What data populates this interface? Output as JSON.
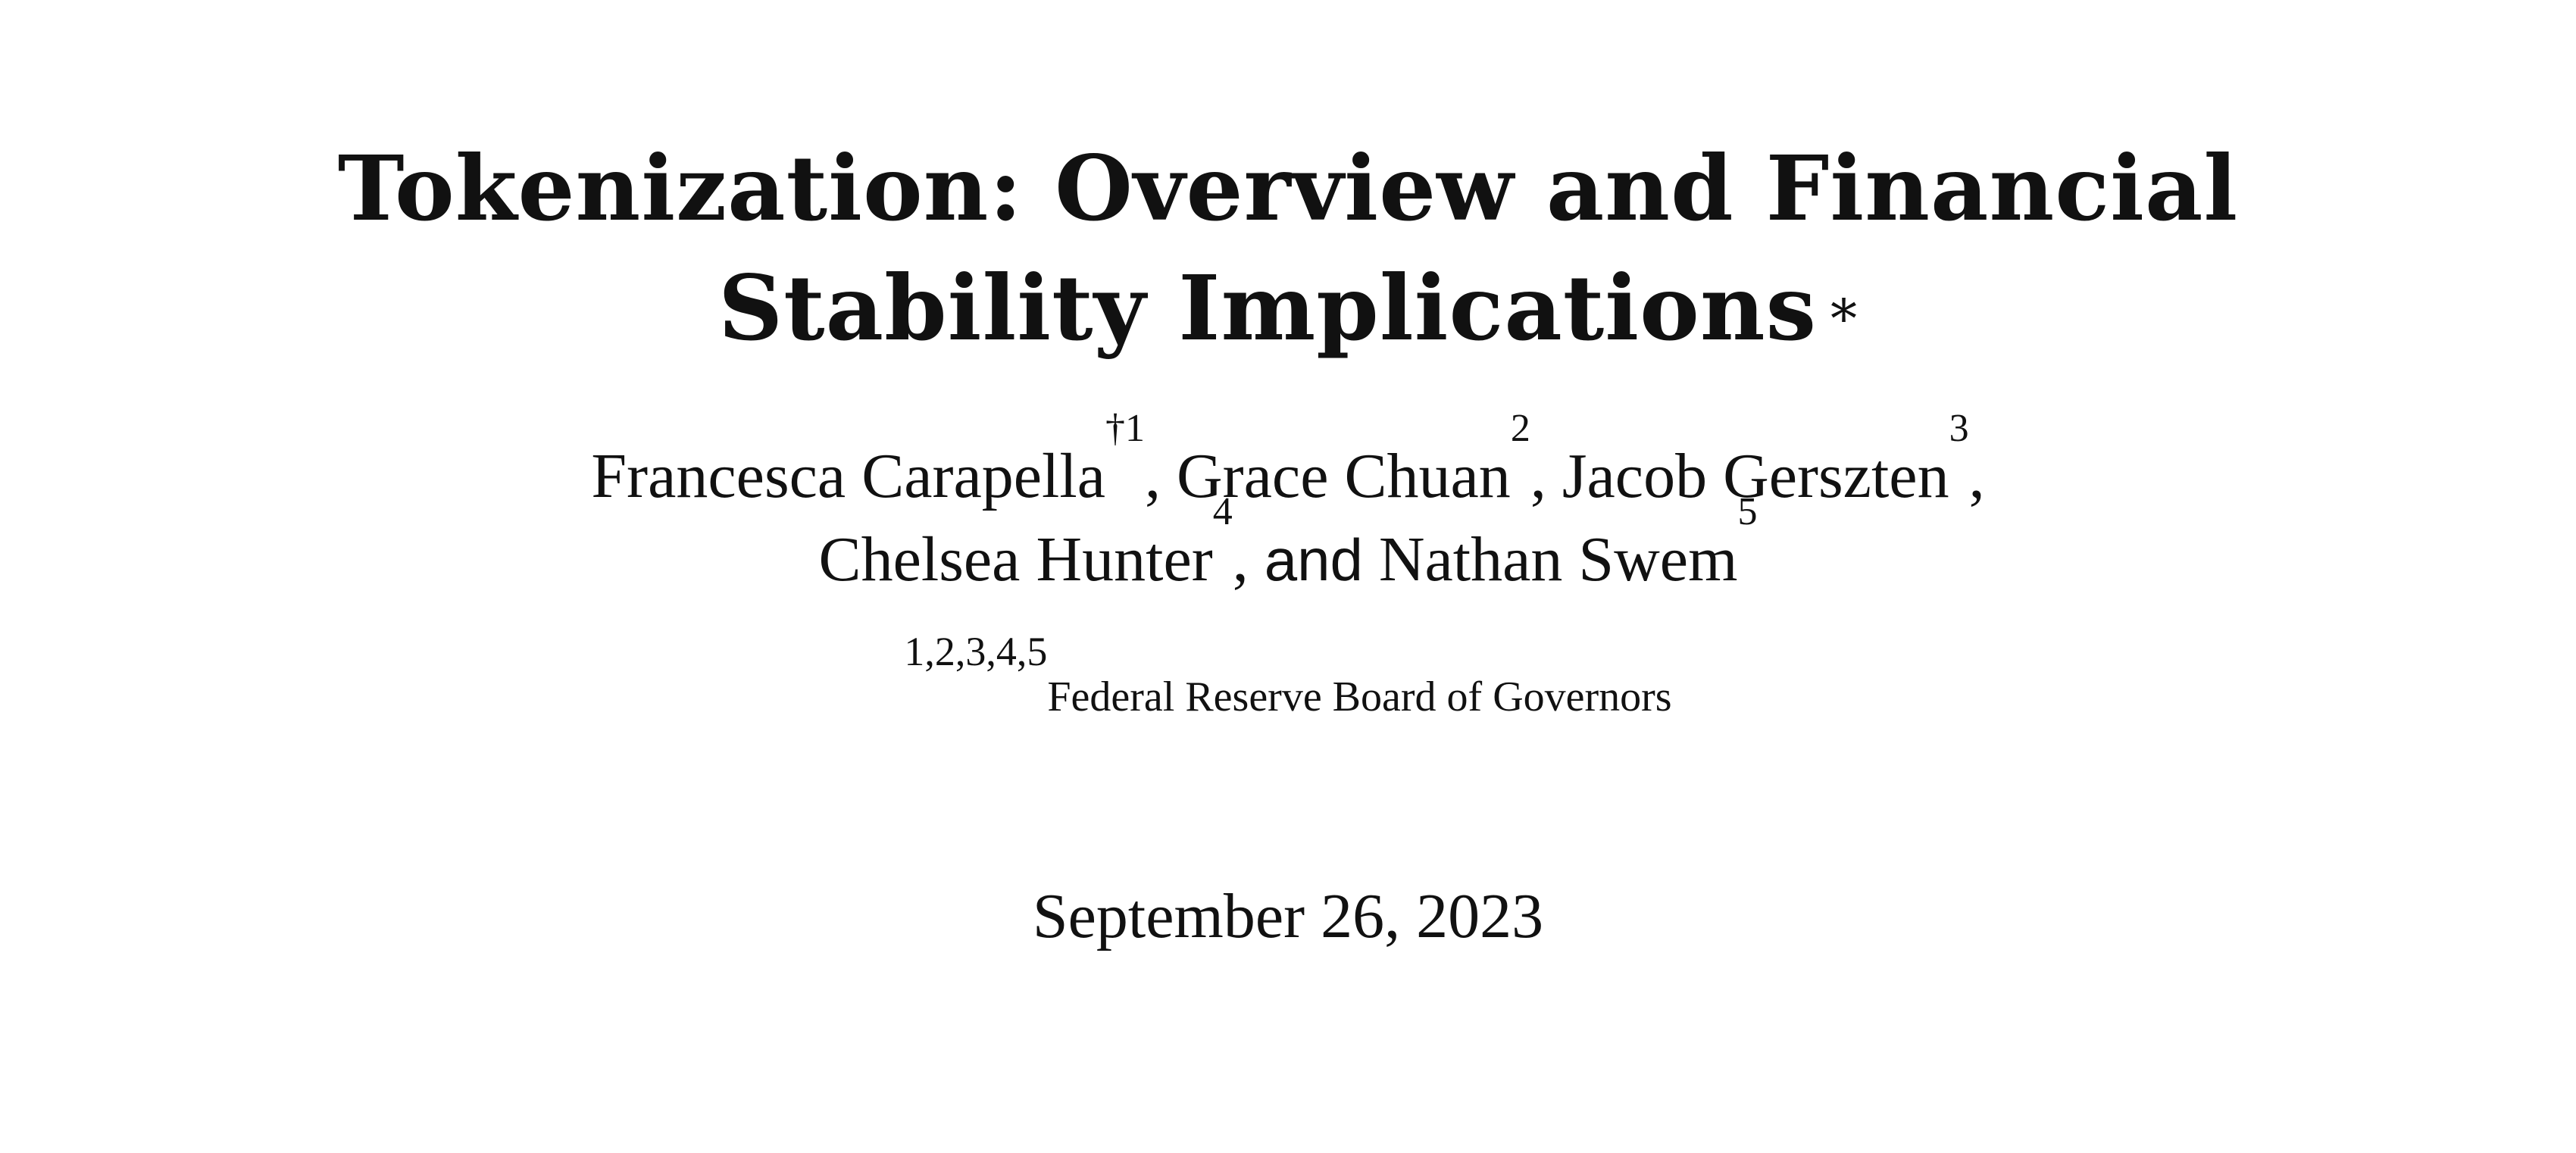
{
  "title": {
    "line1": "Tokenization: Overview and Financial",
    "line2": "Stability Implications",
    "footnote_mark": "*"
  },
  "authors": [
    {
      "name": "Francesca Carapella",
      "mark": "†1",
      "sep": ", "
    },
    {
      "name": "Grace Chuan",
      "mark": "2",
      "sep": ", "
    },
    {
      "name": "Jacob Gerszten",
      "mark": "3",
      "sep": ","
    },
    {
      "name": "Chelsea Hunter",
      "mark": "4",
      "sep": ", "
    },
    {
      "name": "Nathan Swem",
      "mark": "5",
      "sep": ""
    }
  ],
  "authors_conjunction": "and",
  "affiliation": {
    "marks": "1,2,3,4,5",
    "name": "Federal Reserve Board of Governors"
  },
  "date": "September 26, 2023"
}
